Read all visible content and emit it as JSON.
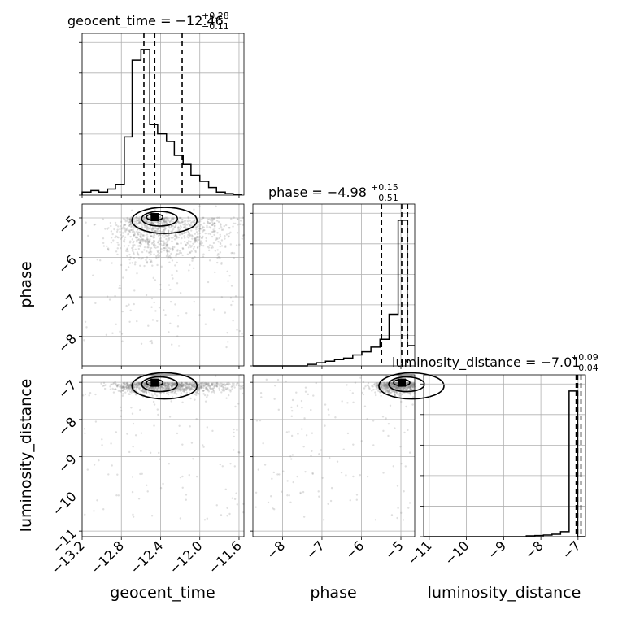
{
  "chart_data": {
    "type": "corner",
    "parameters": [
      "geocent_time",
      "phase",
      "luminosity_distance"
    ],
    "axis_labels": {
      "geocent_time": "geocent_time",
      "phase": "phase",
      "luminosity_distance": "luminosity_distance"
    },
    "ranges": {
      "geocent_time": [
        -13.2,
        -11.55
      ],
      "phase": [
        -8.75,
        -4.65
      ],
      "luminosity_distance": [
        -11.15,
        -6.8
      ]
    },
    "ticks": {
      "geocent_time": [
        "−13.2",
        "−12.8",
        "−12.4",
        "−12.0",
        "−11.6"
      ],
      "geocent_time_values": [
        -13.2,
        -12.8,
        -12.4,
        -12.0,
        -11.6
      ],
      "phase": [
        "−8",
        "−7",
        "−6",
        "−5"
      ],
      "phase_values": [
        -8,
        -7,
        -6,
        -5
      ],
      "luminosity_distance": [
        "−11",
        "−10",
        "−9",
        "−8",
        "−7"
      ],
      "luminosity_distance_values": [
        -11,
        -10,
        -9,
        -8,
        -7
      ]
    },
    "titles": {
      "geocent_time": {
        "prefix": "geocent_time = −12.46",
        "plus": "+0.28",
        "minus": "−0.11"
      },
      "phase": {
        "prefix": "phase = −4.98",
        "plus": "+0.15",
        "minus": "−0.51"
      },
      "luminosity_distance": {
        "prefix": "luminosity_distance = −7.01",
        "plus": "+0.09",
        "minus": "−0.04"
      }
    },
    "quantiles": {
      "geocent_time": [
        -12.57,
        -12.46,
        -12.18
      ],
      "phase": [
        -5.49,
        -4.98,
        -4.83
      ],
      "luminosity_distance": [
        -7.05,
        -7.01,
        -6.92
      ]
    },
    "histograms": {
      "geocent_time": {
        "edges": [
          -13.2,
          -13.11,
          -13.03,
          -12.94,
          -12.86,
          -12.77,
          -12.69,
          -12.6,
          -12.51,
          -12.43,
          -12.34,
          -12.26,
          -12.17,
          -12.09,
          -12.0,
          -11.91,
          -11.83,
          -11.74,
          -11.66,
          -11.57
        ],
        "counts": [
          0.02,
          0.03,
          0.02,
          0.04,
          0.07,
          0.38,
          0.88,
          0.95,
          0.46,
          0.4,
          0.35,
          0.26,
          0.2,
          0.13,
          0.09,
          0.05,
          0.02,
          0.01,
          0.005
        ]
      },
      "phase": {
        "edges": [
          -8.75,
          -8.52,
          -8.29,
          -8.06,
          -7.83,
          -7.6,
          -7.37,
          -7.14,
          -6.91,
          -6.68,
          -6.45,
          -6.22,
          -5.99,
          -5.76,
          -5.53,
          -5.3,
          -5.07,
          -4.84,
          -4.65
        ],
        "counts": [
          0.0,
          0.0,
          0.0,
          0.0,
          0.0,
          0.0,
          0.01,
          0.02,
          0.03,
          0.04,
          0.05,
          0.07,
          0.09,
          0.12,
          0.17,
          0.33,
          0.93,
          0.13
        ]
      },
      "luminosity_distance": {
        "edges": [
          -11.15,
          -10.92,
          -10.69,
          -10.46,
          -10.23,
          -10.0,
          -9.77,
          -9.54,
          -9.31,
          -9.08,
          -8.85,
          -8.62,
          -8.39,
          -8.16,
          -7.93,
          -7.7,
          -7.47,
          -7.24,
          -7.01,
          -6.8
        ],
        "counts": [
          0.0,
          0.0,
          0.0,
          0.0,
          0.0,
          0.0,
          0.0,
          0.0,
          0.0,
          0.0,
          0.0,
          0.0,
          0.005,
          0.007,
          0.01,
          0.015,
          0.03,
          0.88,
          0.0
        ]
      }
    },
    "grid": true,
    "points_color": "#808080",
    "line_color": "#000000"
  }
}
